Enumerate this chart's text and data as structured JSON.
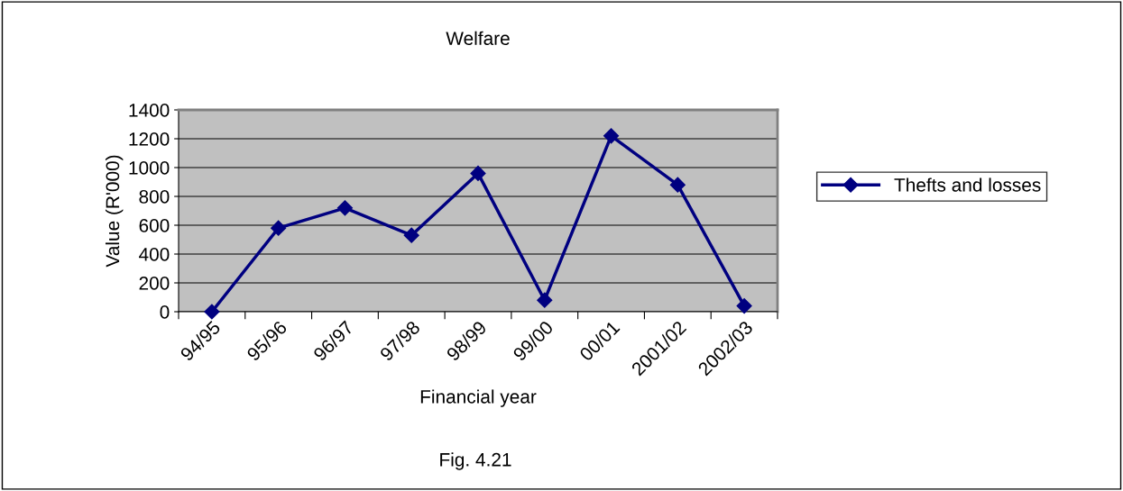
{
  "chart_data": {
    "type": "line",
    "title": "Welfare",
    "xlabel": "Financial year",
    "ylabel": "Value (R'000)",
    "categories": [
      "94/95",
      "95/96",
      "96/97",
      "97/98",
      "98/99",
      "99/00",
      "00/01",
      "2001/02",
      "2002/03"
    ],
    "series": [
      {
        "name": "Thefts and losses",
        "color": "#000080",
        "values": [
          0,
          580,
          720,
          530,
          960,
          80,
          1220,
          880,
          40
        ]
      }
    ],
    "ylim": [
      0,
      1400
    ],
    "yticks": [
      0,
      200,
      400,
      600,
      800,
      1000,
      1200,
      1400
    ],
    "grid": "y",
    "legend": "right",
    "marker": "diamond",
    "line_style": "solid",
    "annotations": [
      "Fig. 4.21"
    ]
  }
}
